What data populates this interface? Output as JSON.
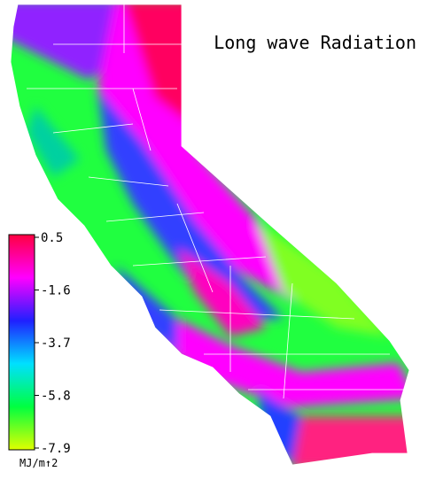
{
  "title": "Long wave Radiation",
  "colorbar": {
    "range": [
      -7.9,
      0.5
    ],
    "ticks": [
      0.5,
      -1.6,
      -3.7,
      -5.8,
      -7.9
    ],
    "unit": "MJ/m↑2",
    "colors": [
      "#ff0040",
      "#ff00ff",
      "#2020ff",
      "#00e0ff",
      "#00ff40",
      "#e0ff00"
    ]
  }
}
